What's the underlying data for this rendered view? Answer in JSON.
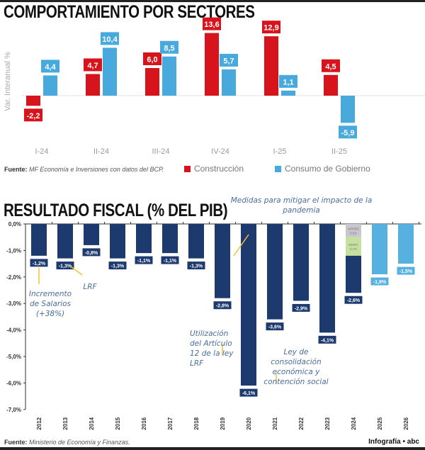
{
  "chart_data": [
    {
      "type": "bar",
      "title": "COMPORTAMIENTO POR SECTORES",
      "ylabel": "Var. Interanual %",
      "categories": [
        "I-24",
        "II-24",
        "III-24",
        "IV-24",
        "I-25",
        "II-25"
      ],
      "series": [
        {
          "name": "Construcción",
          "color": "#d7141c",
          "values": [
            -2.2,
            4.7,
            6.0,
            13.6,
            12.9,
            4.5
          ],
          "labels": [
            "-2,2",
            "4,7",
            "6,0",
            "13,6",
            "12,9",
            "4,5"
          ]
        },
        {
          "name": "Consumo de Gobierno",
          "color": "#48a9dc",
          "values": [
            4.4,
            10.4,
            8.5,
            5.7,
            1.1,
            -5.9
          ],
          "labels": [
            "4,4",
            "10,4",
            "8,5",
            "5,7",
            "1,1",
            "-5,9"
          ]
        }
      ],
      "legend": "bottom",
      "grid": false,
      "source_label": "Fuente:",
      "source_text": "MF Economía e Inversiones con datos del BCP."
    },
    {
      "type": "bar",
      "title": "RESULTADO FISCAL (% DEL PIB)",
      "categories": [
        "2012",
        "2013",
        "2014",
        "2015",
        "2016",
        "2017",
        "2018",
        "2019",
        "2020",
        "2021",
        "2022",
        "2023",
        "2024",
        "2025",
        "2026"
      ],
      "values": [
        -1.2,
        -1.3,
        -0.8,
        -1.3,
        -1.1,
        -1.1,
        -1.3,
        -2.8,
        -6.1,
        -3.6,
        -2.9,
        -4.1,
        -2.6,
        -1.9,
        -1.5
      ],
      "labels": [
        "-1,2%",
        "-1,3%",
        "-0,8%",
        "-1,3%",
        "-1,1%",
        "-1,1%",
        "-1,3%",
        "-2,8%",
        "-6,1%",
        "-3,6%",
        "-2,9%",
        "-4,1%",
        "-2,6%",
        "-1,9%",
        "-1,5%"
      ],
      "colors": {
        "actual": "#1c3a6e",
        "projection": "#56b0e0"
      },
      "projection_years": [
        "2025",
        "2026"
      ],
      "stacked_2024": [
        {
          "label": "MSPBS",
          "value_label": "0,5%",
          "value": 0.5,
          "color": "#c8c8cc"
        },
        {
          "label": "MOPC",
          "value_label": "0,7%",
          "value": 0.7,
          "color": "#c6e0a0"
        }
      ],
      "ylim": [
        -7,
        0
      ],
      "yticks": [
        "0,0%",
        "-1,0%",
        "-2,0%",
        "-3,0%",
        "-4,0%",
        "-5,0%",
        "-6,0%",
        "-7,0%"
      ],
      "annotations": {
        "salarios": "Incremento de Salarios (+38%)",
        "lrf": "LRF",
        "pandemia": "Medidas para mitigar el impacto de la pandemia",
        "articulo": "Utilización del Artículo 12 de la ley LRF",
        "consolidacion": "Ley de consolidación económica y contención social"
      },
      "source_label": "Fuente:",
      "source_text": "Ministerio de Economía y Finanzas."
    }
  ],
  "credit": "Infografía • abc"
}
